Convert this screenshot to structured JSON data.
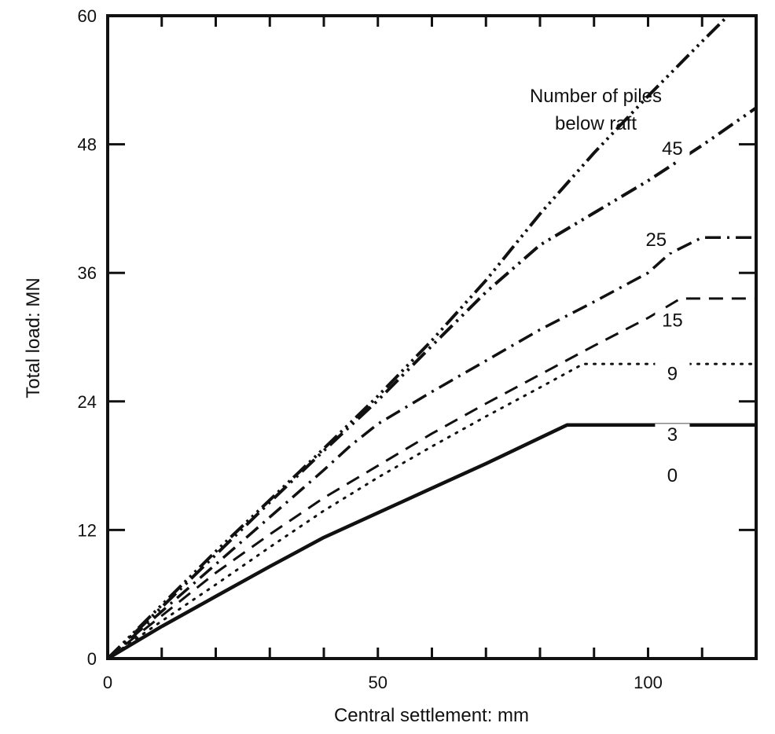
{
  "chart_data": {
    "type": "line",
    "title": "",
    "xlabel": "Central settlement: mm",
    "ylabel": "Total load: MN",
    "xlim": [
      0,
      120
    ],
    "ylim": [
      0,
      60
    ],
    "xticks": [
      0,
      50,
      100
    ],
    "yticks": [
      0,
      12,
      24,
      36,
      48,
      60
    ],
    "x_minor_step": 10,
    "y_minor_step": 6,
    "grid": false,
    "legend_title": [
      "Number of piles",
      "below raft"
    ],
    "legend_placement": "top-right",
    "line_color": "#111111",
    "series": [
      {
        "name": "0",
        "style": "solid",
        "label_at": [
          104.5,
          16.5
        ],
        "x": [
          0,
          10,
          20,
          30,
          40,
          50,
          60,
          70,
          80,
          85,
          90,
          100,
          120
        ],
        "y": [
          0,
          3,
          5.8,
          8.6,
          11.3,
          13.6,
          15.9,
          18.2,
          20.6,
          21.8,
          21.8,
          21.8,
          21.8
        ]
      },
      {
        "name": "3",
        "style": "dotted",
        "label_at": [
          104.5,
          20.3
        ],
        "x": [
          0,
          10,
          20,
          30,
          40,
          50,
          60,
          70,
          80,
          88,
          100,
          120
        ],
        "y": [
          0,
          3.5,
          6.9,
          10.4,
          13.8,
          16.9,
          19.8,
          22.6,
          25.3,
          27.5,
          27.5,
          27.5
        ]
      },
      {
        "name": "9",
        "style": "dashed",
        "label_at": [
          104.5,
          26
        ],
        "x": [
          0,
          10,
          20,
          30,
          40,
          50,
          60,
          70,
          80,
          90,
          100,
          106,
          120
        ],
        "y": [
          0,
          4,
          8,
          11.6,
          15,
          18,
          21,
          23.8,
          26.5,
          29.2,
          31.8,
          33.6,
          33.6
        ]
      },
      {
        "name": "15",
        "style": "dash-dot",
        "label_at": [
          104.5,
          31
        ],
        "x": [
          0,
          10,
          20,
          30,
          40,
          45,
          50,
          60,
          70,
          80,
          90,
          100,
          104,
          110,
          120
        ],
        "y": [
          0,
          4.4,
          8.8,
          13.2,
          17.6,
          19.9,
          21.9,
          24.9,
          27.8,
          30.7,
          33.3,
          36,
          37.8,
          39.3,
          39.3
        ]
      },
      {
        "name": "25",
        "style": "dash-dot-dot",
        "label_at": [
          101.5,
          38.5
        ],
        "x": [
          0,
          10,
          20,
          30,
          40,
          50,
          60,
          70,
          80,
          90,
          100,
          110,
          120
        ],
        "y": [
          0,
          4.8,
          9.7,
          14.6,
          19.4,
          24.1,
          29.2,
          34.2,
          38.6,
          41.6,
          44.6,
          47.9,
          51.4
        ]
      },
      {
        "name": "45",
        "style": "dash-dot-dot-dot",
        "label_at": [
          104.5,
          47
        ],
        "x": [
          0,
          10,
          20,
          30,
          40,
          50,
          60,
          70,
          80,
          90,
          100,
          110,
          120
        ],
        "y": [
          0,
          5,
          10,
          14.8,
          19.6,
          24.5,
          29.7,
          35.3,
          41.5,
          47.2,
          52.5,
          57.6,
          62.6
        ]
      }
    ]
  }
}
